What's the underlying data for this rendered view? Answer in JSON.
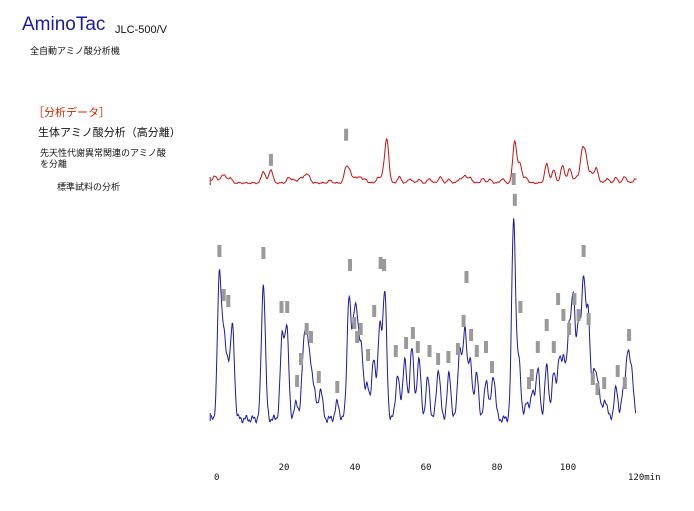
{
  "header": {
    "brand": "AminoTac",
    "model": "JLC-500/V",
    "product": "全自動アミノ酸分析機"
  },
  "info": {
    "section": "［分析データ］",
    "title": "生体アミノ酸分析（高分離）",
    "description_line1": "先天性代謝異常関連のアミノ酸",
    "description_line2": "を分離",
    "sample": "標準試料の分析"
  },
  "chart_data": {
    "type": "line",
    "x_range": [
      0,
      120
    ],
    "x_ticks": [
      "0",
      "20",
      "40",
      "60",
      "80",
      "100",
      "120min"
    ],
    "colors": {
      "upper": "#c21414",
      "lower": "#1a1aa8",
      "marker": "#9a9a9a"
    },
    "series": [
      {
        "role": "upper trace",
        "baseline": 0.0,
        "peaks": [
          [
            0.5,
            0.18
          ],
          [
            2.5,
            0.15
          ],
          [
            3.4,
            0.12
          ],
          [
            4.8,
            0.12
          ],
          [
            14.2,
            0.28
          ],
          [
            16.3,
            0.32
          ],
          [
            21.3,
            0.12
          ],
          [
            22.6,
            0.08
          ],
          [
            24.5,
            0.12
          ],
          [
            26.0,
            0.18
          ],
          [
            27.0,
            0.14
          ],
          [
            33.0,
            0.06
          ],
          [
            37.5,
            0.35
          ],
          [
            38.5,
            0.25
          ],
          [
            40.0,
            0.14
          ],
          [
            41.5,
            0.15
          ],
          [
            43.0,
            0.08
          ],
          [
            46.5,
            0.12
          ],
          [
            48.0,
            0.22
          ],
          [
            49.0,
            1.0
          ],
          [
            52.5,
            0.14
          ],
          [
            55.5,
            0.1
          ],
          [
            58.0,
            0.08
          ],
          [
            61.0,
            0.1
          ],
          [
            64.0,
            0.14
          ],
          [
            66.5,
            0.08
          ],
          [
            69.5,
            0.1
          ],
          [
            71.0,
            0.18
          ],
          [
            72.5,
            0.12
          ],
          [
            76.0,
            0.1
          ],
          [
            78.0,
            0.08
          ],
          [
            81.5,
            0.1
          ],
          [
            85.0,
            1.0
          ],
          [
            86.5,
            0.45
          ],
          [
            88.2,
            0.12
          ],
          [
            94.0,
            0.45
          ],
          [
            96.0,
            0.3
          ],
          [
            98.5,
            0.42
          ],
          [
            100.5,
            0.35
          ],
          [
            102.5,
            0.15
          ],
          [
            104.0,
            0.7
          ],
          [
            105.0,
            0.6
          ],
          [
            106.5,
            0.25
          ],
          [
            108.0,
            0.35
          ],
          [
            111.0,
            0.1
          ],
          [
            113.5,
            0.12
          ],
          [
            116.0,
            0.15
          ],
          [
            119.0,
            0.1
          ]
        ]
      },
      {
        "role": "lower trace",
        "baseline": 0.0,
        "peaks": [
          [
            1.8,
            0.7
          ],
          [
            3.0,
            0.38
          ],
          [
            4.2,
            0.25
          ],
          [
            5.5,
            0.45
          ],
          [
            14.2,
            0.68
          ],
          [
            19.5,
            0.4
          ],
          [
            20.8,
            0.44
          ],
          [
            23.5,
            0.08
          ],
          [
            25.5,
            0.28
          ],
          [
            26.4,
            0.36
          ],
          [
            27.5,
            0.22
          ],
          [
            28.5,
            0.12
          ],
          [
            30.3,
            0.15
          ],
          [
            35.0,
            0.08
          ],
          [
            38.3,
            0.6
          ],
          [
            39.7,
            0.42
          ],
          [
            40.6,
            0.38
          ],
          [
            41.8,
            0.35
          ],
          [
            43.5,
            0.18
          ],
          [
            45.3,
            0.3
          ],
          [
            47.0,
            0.45
          ],
          [
            48.4,
            0.62
          ],
          [
            52.0,
            0.22
          ],
          [
            54.0,
            0.3
          ],
          [
            56.0,
            0.36
          ],
          [
            58.0,
            0.3
          ],
          [
            60.5,
            0.2
          ],
          [
            63.5,
            0.25
          ],
          [
            66.5,
            0.22
          ],
          [
            69.5,
            0.35
          ],
          [
            71.0,
            0.45
          ],
          [
            72.5,
            0.28
          ],
          [
            74.3,
            0.22
          ],
          [
            77.0,
            0.2
          ],
          [
            79.0,
            0.22
          ],
          [
            84.7,
            1.0
          ],
          [
            86.2,
            0.28
          ],
          [
            88.5,
            0.08
          ],
          [
            90.0,
            0.12
          ],
          [
            91.5,
            0.25
          ],
          [
            94.0,
            0.26
          ],
          [
            96.0,
            0.22
          ],
          [
            97.5,
            0.28
          ],
          [
            98.8,
            0.3
          ],
          [
            100.3,
            0.42
          ],
          [
            101.5,
            0.58
          ],
          [
            103.0,
            0.48
          ],
          [
            104.4,
            0.68
          ],
          [
            105.7,
            0.5
          ],
          [
            107.3,
            0.22
          ],
          [
            108.5,
            0.18
          ],
          [
            110.5,
            0.1
          ],
          [
            113.5,
            0.15
          ],
          [
            115.5,
            0.12
          ],
          [
            116.8,
            0.32
          ],
          [
            118.0,
            0.22
          ]
        ],
        "markers": [
          [
            1.8,
            0.84
          ],
          [
            3.0,
            0.62
          ],
          [
            4.3,
            0.59
          ],
          [
            14.2,
            0.83
          ],
          [
            19.3,
            0.56
          ],
          [
            20.9,
            0.56
          ],
          [
            23.7,
            0.19
          ],
          [
            24.8,
            0.3
          ],
          [
            26.4,
            0.45
          ],
          [
            27.6,
            0.41
          ],
          [
            29.8,
            0.21
          ],
          [
            35.0,
            0.16
          ],
          [
            38.6,
            0.77
          ],
          [
            39.8,
            0.48
          ],
          [
            40.6,
            0.41
          ],
          [
            41.6,
            0.45
          ],
          [
            43.7,
            0.32
          ],
          [
            45.4,
            0.54
          ],
          [
            47.2,
            0.78
          ],
          [
            48.2,
            0.77
          ],
          [
            51.5,
            0.34
          ],
          [
            54.4,
            0.38
          ],
          [
            56.3,
            0.43
          ],
          [
            57.7,
            0.36
          ],
          [
            61.0,
            0.34
          ],
          [
            63.4,
            0.3
          ],
          [
            66.3,
            0.31
          ],
          [
            69.0,
            0.35
          ],
          [
            70.6,
            0.49
          ],
          [
            71.4,
            0.71
          ],
          [
            72.7,
            0.42
          ],
          [
            74.3,
            0.34
          ],
          [
            76.9,
            0.36
          ],
          [
            78.6,
            0.26
          ],
          [
            84.7,
            1.2
          ],
          [
            86.6,
            0.56
          ],
          [
            89.0,
            0.18
          ],
          [
            89.8,
            0.22
          ],
          [
            91.5,
            0.36
          ],
          [
            94.0,
            0.47
          ],
          [
            96.0,
            0.36
          ],
          [
            97.2,
            0.6
          ],
          [
            98.7,
            0.52
          ],
          [
            100.3,
            0.45
          ],
          [
            101.8,
            0.6
          ],
          [
            103.0,
            0.52
          ],
          [
            104.4,
            0.84
          ],
          [
            105.8,
            0.5
          ],
          [
            107.0,
            0.2
          ],
          [
            108.3,
            0.15
          ],
          [
            110.2,
            0.18
          ],
          [
            114.0,
            0.24
          ],
          [
            116.0,
            0.18
          ],
          [
            117.2,
            0.42
          ]
        ]
      }
    ]
  }
}
